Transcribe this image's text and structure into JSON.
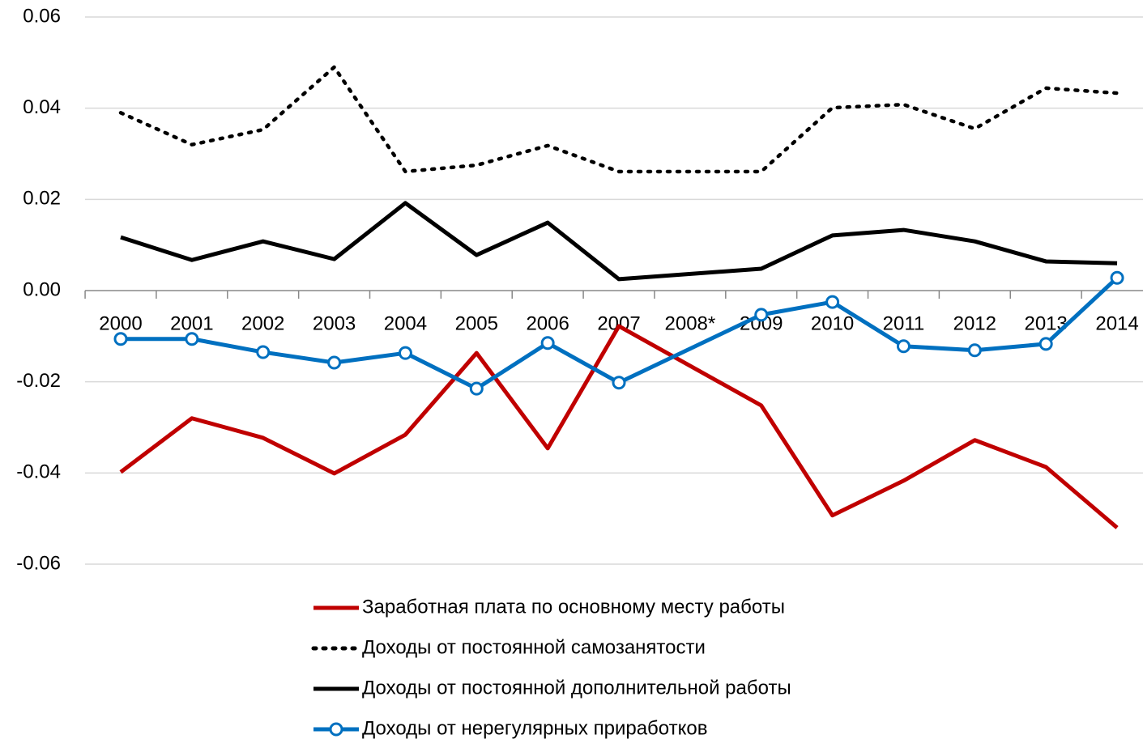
{
  "chart_data": {
    "type": "line",
    "categories": [
      "2000",
      "2001",
      "2002",
      "2003",
      "2004",
      "2005",
      "2006",
      "2007",
      "2008*",
      "2009",
      "2010",
      "2011",
      "2012",
      "2013",
      "2014"
    ],
    "series": [
      {
        "name": "Заработная плата по основному месту работы",
        "color": "#c00000",
        "dash": "solid",
        "marker": "none",
        "values": [
          -0.0398,
          -0.028,
          -0.0323,
          -0.0401,
          -0.0316,
          -0.0137,
          -0.0346,
          -0.0078,
          null,
          -0.0252,
          -0.0493,
          -0.0417,
          -0.0328,
          -0.0387,
          -0.052
        ]
      },
      {
        "name": "Доходы от постоянной самозанятости",
        "color": "#000000",
        "dash": "dotted",
        "marker": "none",
        "values": [
          0.039,
          0.032,
          0.0353,
          0.049,
          0.0261,
          0.0275,
          0.0318,
          0.0261,
          null,
          0.0261,
          0.0401,
          0.0408,
          0.0355,
          0.0444,
          0.0433
        ]
      },
      {
        "name": "Доходы от постоянной дополнительной работы",
        "color": "#000000",
        "dash": "solid",
        "marker": "none",
        "values": [
          0.0117,
          0.0067,
          0.0108,
          0.0069,
          0.0192,
          0.0078,
          0.0149,
          0.0025,
          null,
          0.0048,
          0.0121,
          0.0133,
          0.0108,
          0.0064,
          0.006
        ]
      },
      {
        "name": "Доходы от нерегулярных приработков",
        "color": "#0070c0",
        "dash": "solid",
        "marker": "circle",
        "values": [
          -0.0106,
          -0.0106,
          -0.0135,
          -0.0158,
          -0.0137,
          -0.0215,
          -0.0115,
          -0.0202,
          null,
          -0.0053,
          -0.0025,
          -0.0122,
          -0.0131,
          -0.0117,
          0.0028
        ]
      }
    ],
    "ylim": [
      -0.06,
      0.06
    ],
    "yticks": [
      -0.06,
      -0.04,
      -0.02,
      {
        "value": 0,
        "label": "0.00"
      },
      0.02,
      0.04,
      0.06
    ],
    "grid": true,
    "span_gaps": true,
    "legend": "bottom"
  }
}
